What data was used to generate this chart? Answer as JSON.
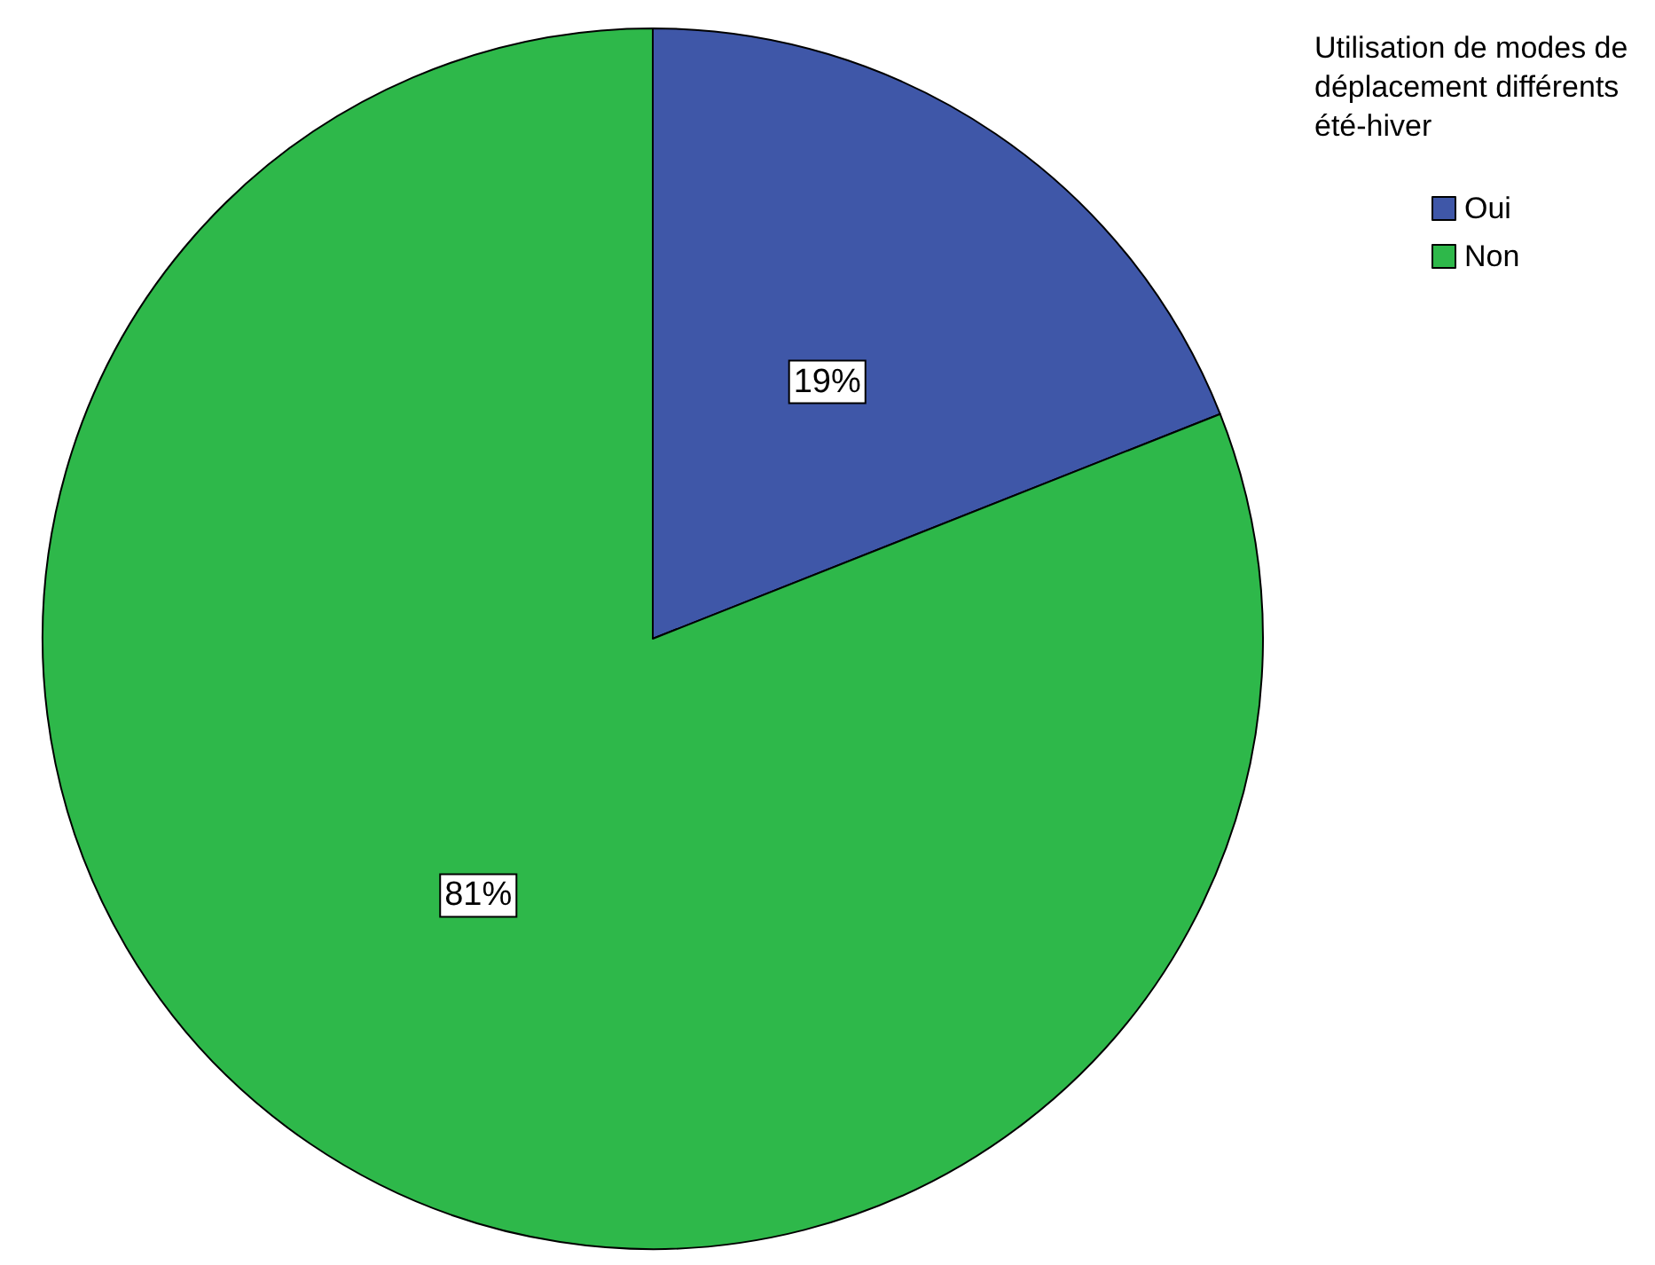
{
  "chart_data": {
    "type": "pie",
    "legend_title": "Utilisation de modes de déplacement différents été-hiver",
    "categories": [
      "Oui",
      "Non"
    ],
    "values": [
      19,
      81
    ],
    "colors": [
      "#3f57a8",
      "#2eb84a"
    ],
    "value_labels": [
      "19%",
      "81%"
    ],
    "legend": "top right"
  }
}
